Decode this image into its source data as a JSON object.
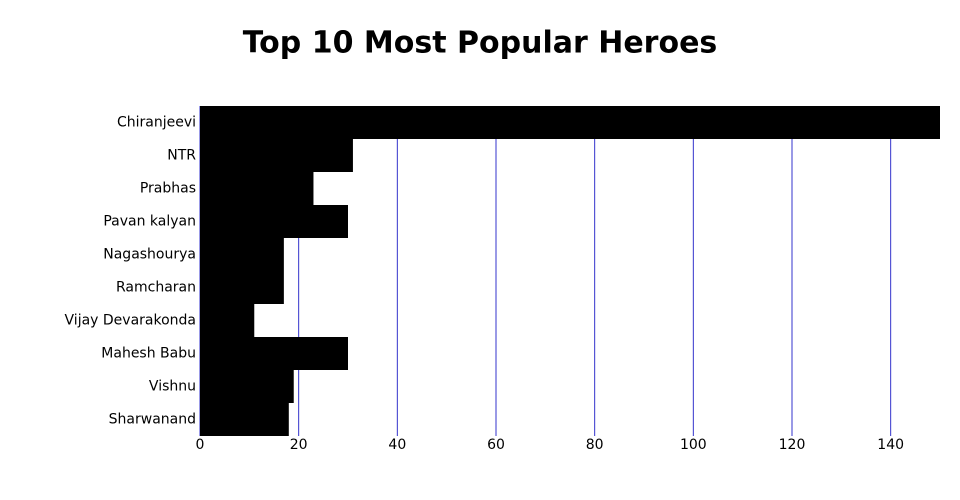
{
  "chart_data": {
    "type": "bar",
    "orientation": "horizontal",
    "title": "Top 10 Most Popular Heroes",
    "categories": [
      "Chiranjeevi",
      "NTR",
      "Prabhas",
      "Pavan kalyan",
      "Nagashourya",
      "Ramcharan",
      "Vijay Devarakonda",
      "Mahesh Babu",
      "Vishnu",
      "Sharwanand"
    ],
    "values": [
      150,
      31,
      23,
      30,
      17,
      17,
      11,
      30,
      19,
      18
    ],
    "color": "#000000",
    "xlim": [
      0,
      150
    ],
    "xticks": [
      0,
      20,
      40,
      60,
      80,
      100,
      120,
      140
    ],
    "grid": true,
    "grid_color": "#3333cc"
  }
}
